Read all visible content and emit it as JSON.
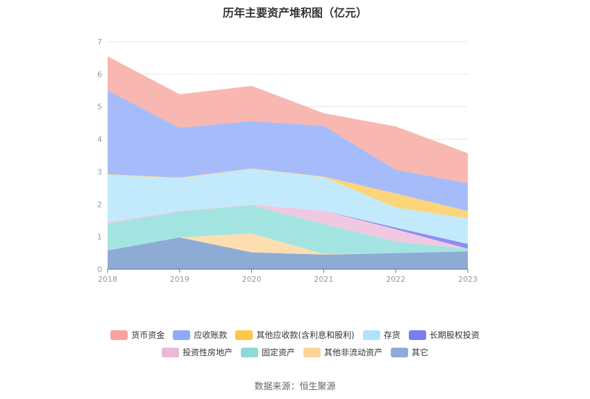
{
  "chart_data": {
    "type": "area",
    "title": "历年主要资产堆积图（亿元）",
    "source": "数据来源：恒生聚源",
    "x": [
      "2018",
      "2019",
      "2020",
      "2021",
      "2022",
      "2023"
    ],
    "ylim": [
      0,
      7
    ],
    "yticks": [
      "0",
      "1",
      "2",
      "3",
      "4",
      "5",
      "6",
      "7"
    ],
    "grid": true,
    "legend_position": "bottom",
    "series": [
      {
        "name": "其它",
        "color": "#8eabd6",
        "values": [
          0.58,
          0.98,
          0.52,
          0.45,
          0.5,
          0.55
        ]
      },
      {
        "name": "其他非流动资产",
        "color": "#fddeb0",
        "values": [
          0.0,
          0.0,
          0.58,
          0.02,
          0.0,
          0.0
        ]
      },
      {
        "name": "固定资产",
        "color": "#a3e4e1",
        "values": [
          0.82,
          0.8,
          0.87,
          0.92,
          0.35,
          0.08
        ]
      },
      {
        "name": "投资性房地产",
        "color": "#f0c8e2",
        "values": [
          0.05,
          0.02,
          0.02,
          0.41,
          0.38,
          0.0
        ]
      },
      {
        "name": "长期股权投资",
        "color": "#8d8ef0",
        "values": [
          0.0,
          0.0,
          0.0,
          0.0,
          0.05,
          0.15
        ]
      },
      {
        "name": "存货",
        "color": "#c3eafc",
        "values": [
          1.45,
          1.0,
          1.09,
          1.03,
          0.62,
          0.78
        ]
      },
      {
        "name": "其他应收款(含利息和股利)",
        "color": "#fdd57a",
        "values": [
          0.02,
          0.02,
          0.02,
          0.02,
          0.43,
          0.23
        ]
      },
      {
        "name": "应收账款",
        "color": "#a6bcfa",
        "values": [
          2.58,
          1.53,
          1.46,
          1.56,
          0.73,
          0.86
        ]
      },
      {
        "name": "货币资金",
        "color": "#f8b7b1",
        "values": [
          1.05,
          1.03,
          1.08,
          0.39,
          1.33,
          0.92
        ]
      }
    ],
    "legend_rows": [
      [
        {
          "name": "货币资金",
          "color": "#f8a39c"
        },
        {
          "name": "应收账款",
          "color": "#8faaf8"
        },
        {
          "name": "其他应收款(含利息和股利)",
          "color": "#fcc64a"
        },
        {
          "name": "存货",
          "color": "#b0e3fb"
        },
        {
          "name": "长期股权投资",
          "color": "#7b7cee"
        }
      ],
      [
        {
          "name": "投资性房地产",
          "color": "#ebb8da"
        },
        {
          "name": "固定资产",
          "color": "#8cd9d5"
        },
        {
          "name": "其他非流动资产",
          "color": "#fdd59a"
        },
        {
          "name": "其它",
          "color": "#8eabd6"
        }
      ]
    ]
  }
}
